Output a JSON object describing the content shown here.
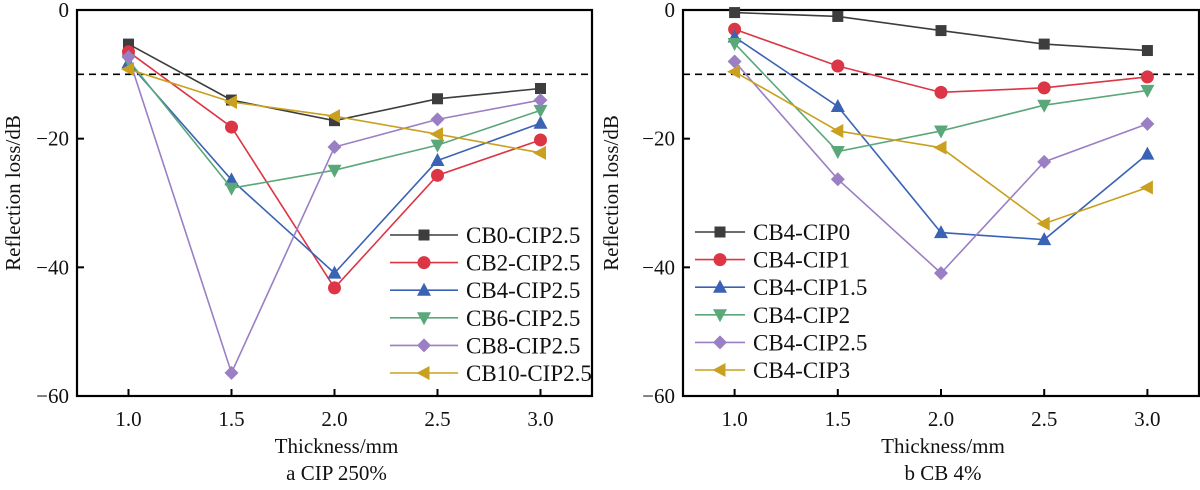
{
  "chart_data": [
    {
      "type": "line",
      "caption": "a  CIP 250%",
      "xlabel": "Thickness/mm",
      "ylabel": "Reflection loss/dB",
      "x": [
        1.0,
        1.5,
        2.0,
        2.5,
        3.0
      ],
      "xticks": [
        "1.0",
        "1.5",
        "2.0",
        "2.5",
        "3.0"
      ],
      "xlim": [
        0.75,
        3.25
      ],
      "ylim": [
        -60,
        0
      ],
      "yticks": [
        "0",
        "−20",
        "−40",
        "−60"
      ],
      "ytick_values": [
        0,
        -20,
        -40,
        -60
      ],
      "reference_line": {
        "y": -10,
        "style": "dashed",
        "color": "#000000"
      },
      "grid": false,
      "legend_position": "bottom-right",
      "series": [
        {
          "name": "CB0-CIP2.5",
          "color": "#3d3d3d",
          "marker": "square",
          "values": [
            -5.3,
            -14.0,
            -17.2,
            -13.8,
            -12.2
          ]
        },
        {
          "name": "CB2-CIP2.5",
          "color": "#dc3545",
          "marker": "circle",
          "values": [
            -6.5,
            -18.2,
            -43.2,
            -25.7,
            -20.2
          ]
        },
        {
          "name": "CB4-CIP2.5",
          "color": "#3a62b5",
          "marker": "triangle-up",
          "values": [
            -8.2,
            -26.4,
            -40.9,
            -23.4,
            -17.6
          ]
        },
        {
          "name": "CB6-CIP2.5",
          "color": "#5aa77a",
          "marker": "triangle-down",
          "values": [
            -7.8,
            -27.7,
            -24.9,
            -21.0,
            -15.6
          ]
        },
        {
          "name": "CB8-CIP2.5",
          "color": "#9a7fc4",
          "marker": "diamond",
          "values": [
            -7.3,
            -56.4,
            -21.3,
            -17.0,
            -14.0
          ]
        },
        {
          "name": "CB10-CIP2.5",
          "color": "#c9a01f",
          "marker": "triangle-left",
          "values": [
            -9.2,
            -14.3,
            -16.5,
            -19.3,
            -22.2
          ]
        }
      ]
    },
    {
      "type": "line",
      "caption": "b  CB 4%",
      "xlabel": "Thickness/mm",
      "ylabel": "Reflection loss/dB",
      "x": [
        1.0,
        1.5,
        2.0,
        2.5,
        3.0
      ],
      "xticks": [
        "1.0",
        "1.5",
        "2.0",
        "2.5",
        "3.0"
      ],
      "xlim": [
        0.75,
        3.25
      ],
      "ylim": [
        -60,
        0
      ],
      "yticks": [
        "0",
        "−20",
        "−40",
        "−60"
      ],
      "ytick_values": [
        0,
        -20,
        -40,
        -60
      ],
      "reference_line": {
        "y": -10,
        "style": "dashed",
        "color": "#000000"
      },
      "grid": false,
      "legend_position": "bottom-left",
      "series": [
        {
          "name": "CB4-CIP0",
          "color": "#3d3d3d",
          "marker": "square",
          "values": [
            -0.4,
            -1.0,
            -3.2,
            -5.3,
            -6.3
          ]
        },
        {
          "name": "CB4-CIP1",
          "color": "#dc3545",
          "marker": "circle",
          "values": [
            -3.0,
            -8.7,
            -12.8,
            -12.1,
            -10.4
          ]
        },
        {
          "name": "CB4-CIP1.5",
          "color": "#3a62b5",
          "marker": "triangle-up",
          "values": [
            -4.2,
            -15.0,
            -34.6,
            -35.7,
            -22.4
          ]
        },
        {
          "name": "CB4-CIP2",
          "color": "#5aa77a",
          "marker": "triangle-down",
          "values": [
            -5.2,
            -22.0,
            -18.8,
            -14.8,
            -12.5
          ]
        },
        {
          "name": "CB4-CIP2.5",
          "color": "#9a7fc4",
          "marker": "diamond",
          "values": [
            -8.0,
            -26.3,
            -40.9,
            -23.6,
            -17.7
          ]
        },
        {
          "name": "CB4-CIP3",
          "color": "#c9a01f",
          "marker": "triangle-left",
          "values": [
            -9.6,
            -18.8,
            -21.4,
            -33.2,
            -27.6
          ]
        }
      ]
    }
  ]
}
